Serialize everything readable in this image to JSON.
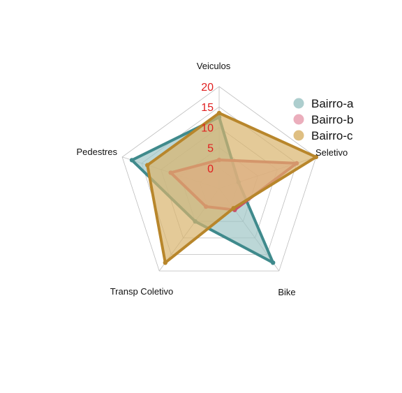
{
  "chart_data": {
    "type": "radar",
    "title": "",
    "axes": [
      "Veiculos",
      "Seletivo",
      "Bike",
      "Transp Coletivo",
      "Pedestres"
    ],
    "ticks": [
      0,
      5,
      10,
      15,
      20
    ],
    "range": [
      -5,
      20
    ],
    "grid": true,
    "legend_position": "top-right",
    "series": [
      {
        "name": "Bairro-a",
        "values": [
          12.5,
          0,
          17.5,
          5,
          17.5
        ],
        "color": "#3f8a8c",
        "fill": "#9fc6c6"
      },
      {
        "name": "Bairro-b",
        "values": [
          2,
          15,
          1.5,
          0.5,
          7.5
        ],
        "color": "#c8506a",
        "fill": "#e8a0b0"
      },
      {
        "name": "Bairro-c",
        "values": [
          13.5,
          20,
          1,
          17.5,
          13.5
        ],
        "color": "#b8862b",
        "fill": "#d9b46c"
      }
    ]
  }
}
